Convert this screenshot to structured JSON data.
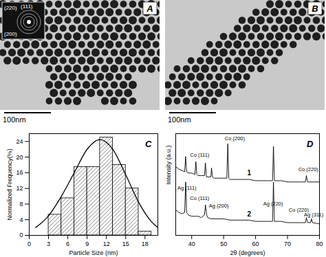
{
  "images": [
    {
      "panel_label": "A",
      "scale_bar": "100nm",
      "inset_labels": [
        "(220)",
        "(111)",
        "(200)"
      ]
    },
    {
      "panel_label": "B",
      "scale_bar": "100nm"
    }
  ],
  "chart_data": [
    {
      "type": "histogram",
      "panel_label": "C",
      "x_label": "Particle Size (nm)",
      "y_label": "Normalized Frequency(%)",
      "bins": [
        3,
        5,
        7,
        9,
        11,
        13,
        15,
        17,
        19
      ],
      "values": [
        5.3,
        9.5,
        17.5,
        17.5,
        25,
        18,
        12,
        1
      ],
      "color": "#8c8c8c",
      "fit": {
        "type": "line",
        "color": "#000000",
        "x": [
          1,
          3,
          5,
          7,
          9,
          11,
          13,
          15,
          17,
          19,
          20
        ],
        "y": [
          2,
          5,
          10,
          16,
          22,
          24.5,
          22,
          15.5,
          8.5,
          3.5,
          2
        ]
      },
      "xlim": [
        0,
        20
      ],
      "xticks": [
        0,
        3,
        6,
        9,
        12,
        15,
        18
      ],
      "ylim": [
        0,
        26
      ],
      "yticks": [
        0,
        4,
        8,
        12,
        16,
        20,
        24
      ]
    },
    {
      "type": "line",
      "panel_label": "D",
      "x_label": "2θ (degrees)",
      "y_label": "Intensity (a.u.)",
      "xlim": [
        35,
        80
      ],
      "xticks": [
        40,
        50,
        60,
        70,
        80
      ],
      "ylim": [
        20,
        100
      ],
      "yticks": [],
      "tick_labels": "x",
      "series": [
        {
          "name": "1",
          "color": "#000000",
          "x": [
            35,
            36,
            37,
            37.8,
            38.1,
            38.4,
            39,
            40,
            41,
            41.3,
            41.6,
            42,
            43,
            44,
            44.3,
            44.6,
            45,
            46,
            46.2,
            46.5,
            47,
            48,
            49,
            50,
            51,
            51.3,
            51.6,
            52,
            54,
            56,
            58,
            60,
            62,
            64,
            65.3,
            65.6,
            65.9,
            68,
            70,
            72,
            74,
            75.6,
            75.9,
            76.3,
            78,
            80
          ],
          "values": [
            74,
            72,
            71,
            70,
            82,
            70,
            69,
            69,
            68,
            78,
            68,
            67,
            67,
            67,
            77,
            66,
            66,
            66,
            73,
            66,
            65,
            65,
            65,
            65,
            65,
            92,
            65,
            64,
            64,
            64,
            64,
            63,
            63,
            63,
            63,
            90,
            63,
            63,
            62,
            62,
            62,
            62,
            67,
            62,
            62,
            62
          ]
        },
        {
          "name": "2",
          "color": "#000000",
          "x": [
            35,
            36,
            37,
            37.8,
            38.1,
            38.4,
            39,
            40,
            41,
            42,
            43,
            44,
            44.3,
            44.7,
            45,
            46,
            48,
            50,
            52,
            55,
            58,
            60,
            62,
            64,
            65.3,
            65.6,
            65.9,
            68,
            70,
            72,
            74,
            75.6,
            75.9,
            76.3,
            77.2,
            77.5,
            77.8,
            80
          ],
          "values": [
            40,
            38,
            37,
            38,
            62,
            38,
            36,
            35,
            35,
            35,
            34,
            36,
            44,
            36,
            34,
            33,
            33,
            33,
            32,
            32,
            32,
            31,
            31,
            31,
            31,
            62,
            31,
            31,
            30,
            30,
            30,
            30,
            34,
            30,
            30,
            33,
            30,
            29
          ]
        }
      ],
      "annotations": [
        {
          "text": "Ag (111)",
          "x": 38.5,
          "y": 57
        },
        {
          "text": "Co (111)",
          "x": 42.5,
          "y": 83
        },
        {
          "text": "Co (200)",
          "x": 53.5,
          "y": 96
        },
        {
          "text": "Co (220)",
          "x": 76.5,
          "y": 72
        },
        {
          "text": "Co (111)",
          "x": 42.5,
          "y": 49
        },
        {
          "text": "Ag (200)",
          "x": 48.5,
          "y": 43
        },
        {
          "text": "Ag (220)",
          "x": 65.5,
          "y": 45
        },
        {
          "text": "Co (220)",
          "x": 73.5,
          "y": 40
        },
        {
          "text": "Ag (311)",
          "x": 78.2,
          "y": 36
        }
      ]
    }
  ]
}
